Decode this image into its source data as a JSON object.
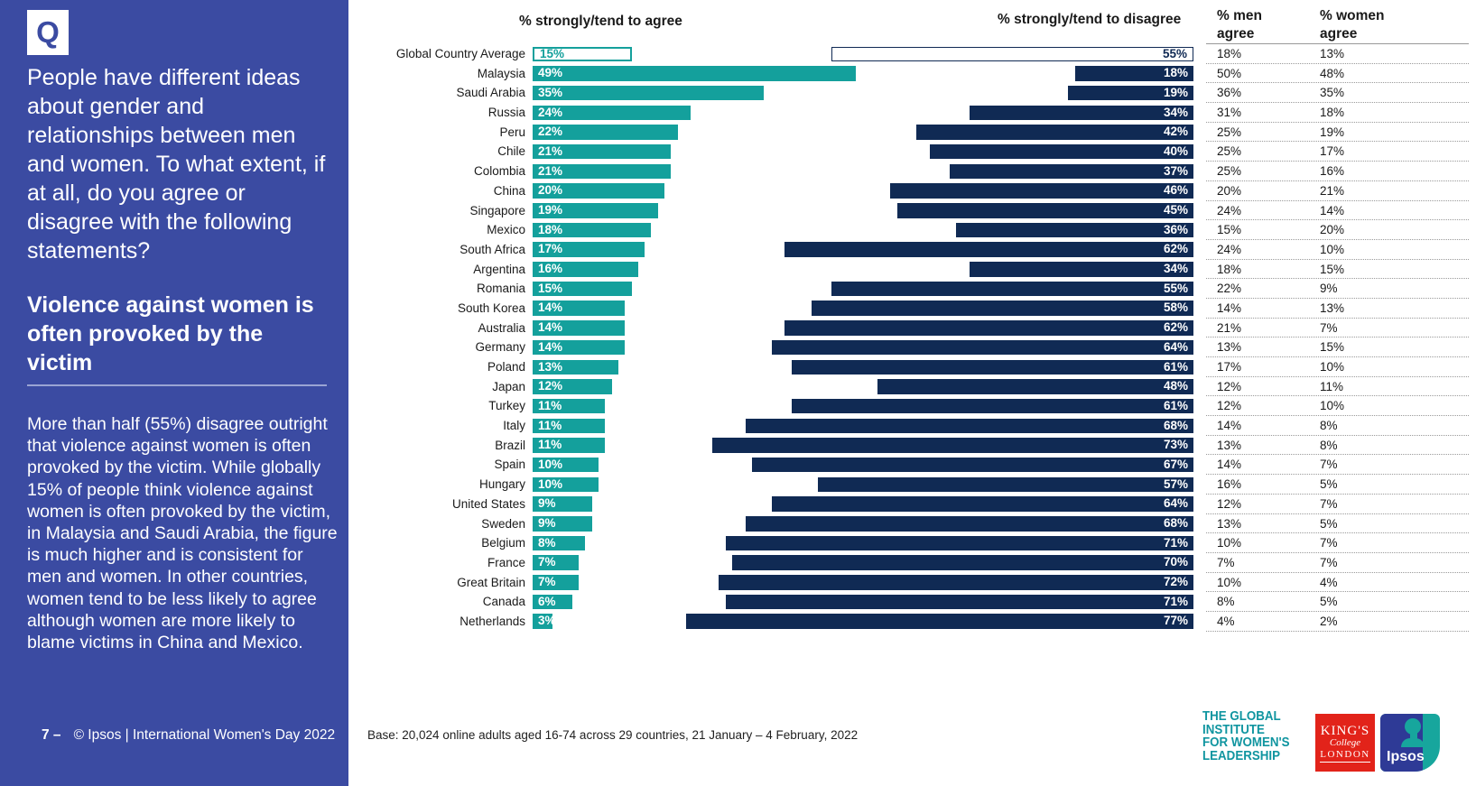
{
  "sidebar": {
    "q_label": "Q",
    "question": "People have different ideas about gender and relationships between men and women. To what extent, if at all, do you agree or disagree  with the following statements?",
    "statement_title": "Violence against women is often provoked by the victim",
    "commentary": "More than half (55%) disagree outright that violence against women is often provoked by the victim. While globally 15% of people think violence against women is often provoked by the victim, in Malaysia and Saudi Arabia, the figure is much higher and is consistent for men and women. In other countries, women tend to be less likely to agree although women are more likely to blame victims in China and Mexico.",
    "page_number": "7 –",
    "copyright": "© Ipsos | International Women's Day 2022"
  },
  "chart": {
    "agree_header": "% strongly/tend to agree",
    "disagree_header": "% strongly/tend to disagree",
    "men_header": "% men agree",
    "women_header": "% women agree"
  },
  "footer": {
    "base_note": "Base: 20,024 online adults aged 16-74 across 29 countries, 21 January – 4 February, 2022"
  },
  "logos": {
    "giwl_lines": [
      "THE GLOBAL",
      "INSTITUTE",
      "FOR WOMEN'S",
      "LEADERSHIP"
    ],
    "kings": {
      "line1": "KING'S",
      "line2": "College",
      "line3": "LONDON"
    },
    "ipsos_label": "Ipsos"
  },
  "chart_data": {
    "type": "bar",
    "orientation": "horizontal-diverging",
    "title": "Violence against women is often provoked by the victim",
    "categories": [
      "Global Country Average",
      "Malaysia",
      "Saudi Arabia",
      "Russia",
      "Peru",
      "Chile",
      "Colombia",
      "China",
      "Singapore",
      "Mexico",
      "South Africa",
      "Argentina",
      "Romania",
      "South Korea",
      "Australia",
      "Germany",
      "Poland",
      "Japan",
      "Turkey",
      "Italy",
      "Brazil",
      "Spain",
      "Hungary",
      "United States",
      "Sweden",
      "Belgium",
      "France",
      "Great Britain",
      "Canada",
      "Netherlands"
    ],
    "series": [
      {
        "name": "% strongly/tend to agree",
        "values": [
          15,
          49,
          35,
          24,
          22,
          21,
          21,
          20,
          19,
          18,
          17,
          16,
          15,
          14,
          14,
          14,
          13,
          12,
          11,
          11,
          11,
          10,
          10,
          9,
          9,
          8,
          7,
          7,
          6,
          3
        ]
      },
      {
        "name": "% strongly/tend to disagree",
        "values": [
          55,
          18,
          19,
          34,
          42,
          40,
          37,
          46,
          45,
          36,
          62,
          34,
          55,
          58,
          62,
          64,
          61,
          48,
          61,
          68,
          73,
          67,
          57,
          64,
          68,
          71,
          70,
          72,
          71,
          77
        ]
      },
      {
        "name": "% men agree",
        "values": [
          18,
          50,
          36,
          31,
          25,
          25,
          25,
          20,
          24,
          15,
          24,
          18,
          22,
          14,
          21,
          13,
          17,
          12,
          12,
          14,
          13,
          14,
          16,
          12,
          13,
          10,
          7,
          10,
          8,
          4
        ]
      },
      {
        "name": "% women agree",
        "values": [
          13,
          48,
          35,
          18,
          19,
          17,
          16,
          21,
          14,
          20,
          10,
          15,
          9,
          13,
          7,
          15,
          10,
          11,
          10,
          8,
          8,
          7,
          5,
          7,
          5,
          7,
          7,
          4,
          5,
          2
        ]
      }
    ],
    "highlight_category": "Global Country Average",
    "value_suffix": "%",
    "colors": {
      "agree": "#14A09C",
      "disagree": "#102A54",
      "sidebar": "#3B4BA2"
    },
    "legend_position": "column-headers",
    "grid": false
  }
}
